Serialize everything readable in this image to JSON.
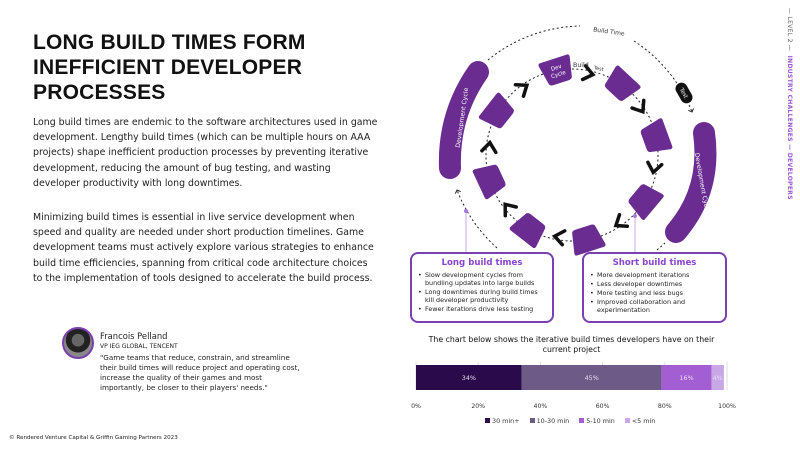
{
  "title": "LONG BUILD TIMES FORM INEFFICIENT DEVELOPER PROCESSES",
  "paragraphs": [
    "Long build times are endemic to the software architectures used in game development. Lengthy build times (which can be multiple hours on AAA projects) shape inefficient production processes by preventing iterative development, reducing the amount of bug testing, and wasting developer productivity with long downtimes.",
    "Minimizing build times is essential in live service development when speed and quality are needed under short production timelines. Game development teams must actively explore various strategies to enhance build time efficiencies, spanning from critical code architecture choices to the implementation of tools designed to accelerate the build process."
  ],
  "quote": {
    "name": "Francois Pelland",
    "role": "VP IEG GLOBAL, TENCENT",
    "text": "\"Game teams that reduce, constrain, and streamline their build times will reduce project and operating cost, increase the quality of their games and most importantly, be closer to their players' needs.\""
  },
  "footer": "© Rendered Venture Capital & Griffin Gaming Partners 2023",
  "side": {
    "level": "— LEVEL 2 —",
    "section": "INDUSTRY CHALLENGES — DEVELOPERS"
  },
  "diagram": {
    "build_time": "Build Time",
    "dev_cycle": "Dev Cycle",
    "build": "Build",
    "test_small": "Test",
    "test": "Test",
    "development_cycle": "Development Cycle"
  },
  "long_box": {
    "title": "Long build times",
    "items": [
      "Slow development cycles from bundling updates into large builds",
      "Long downtimes during build times kill developer productivity",
      "Fewer iterations drive less testing"
    ]
  },
  "short_box": {
    "title": "Short build times",
    "items": [
      "More development iterations",
      "Less developer downtimes",
      "More testing and less bugs",
      "Improved collaboration and experimentation"
    ]
  },
  "colors": {
    "accent": "#6a2c91",
    "light": "#9b59d6"
  },
  "chart_data": {
    "type": "bar",
    "orientation": "horizontal-stacked",
    "title": "The chart below shows the iterative build times developers have on their current project",
    "series": [
      {
        "name": "30 min+",
        "value": 34,
        "label": "34%",
        "color": "#2a0a4a"
      },
      {
        "name": "10-30 min",
        "value": 45,
        "label": "45%",
        "color": "#6e5a86"
      },
      {
        "name": "5-10 min",
        "value": 16,
        "label": "16%",
        "color": "#a35ed4"
      },
      {
        "name": "<5 min",
        "value": 4,
        "label": "4%",
        "color": "#c9a6e6"
      }
    ],
    "xlim": [
      0,
      100
    ],
    "ticks": [
      "0%",
      "20%",
      "40%",
      "60%",
      "80%",
      "100%"
    ],
    "grid": true,
    "legend": "bottom"
  }
}
